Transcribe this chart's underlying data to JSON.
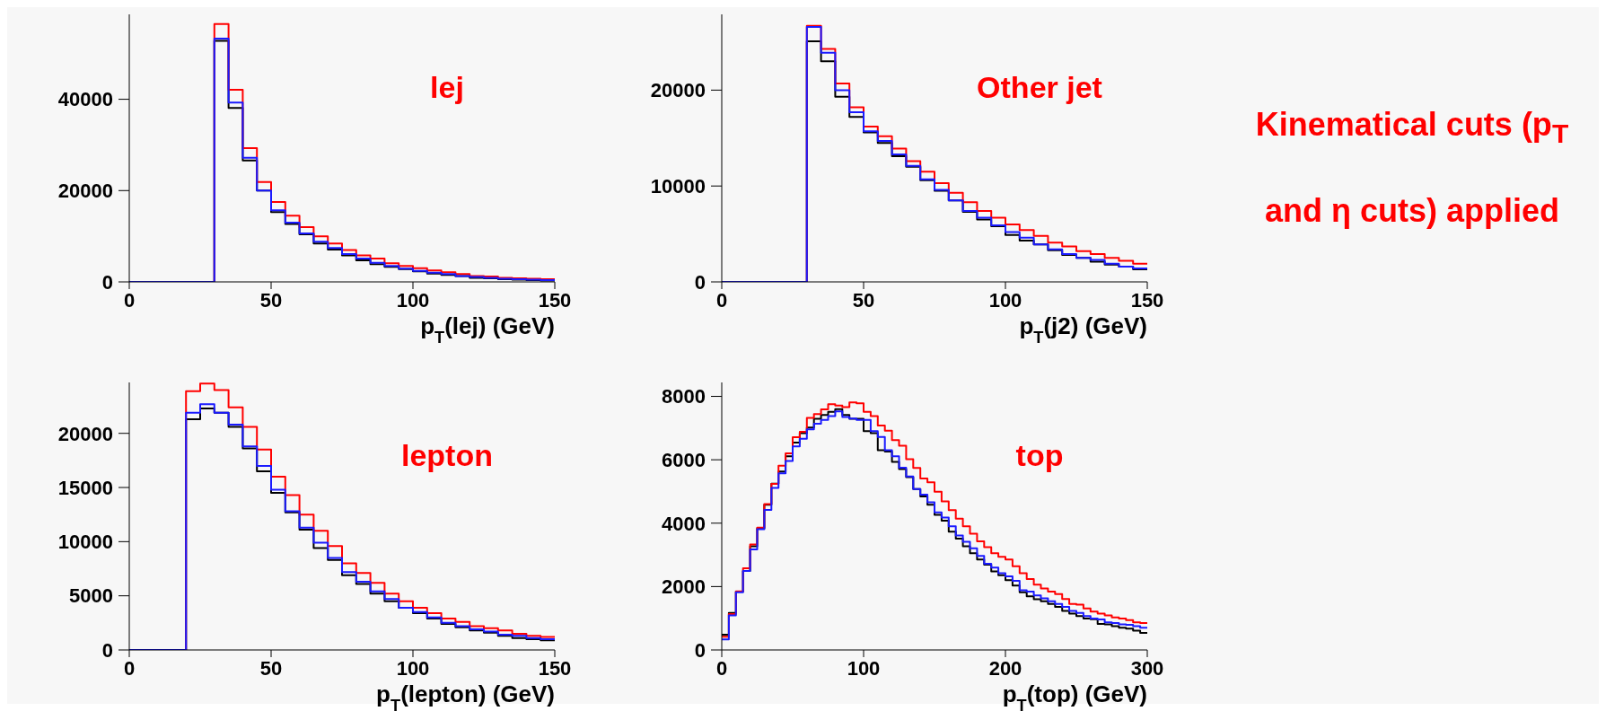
{
  "chart_data": [
    {
      "type": "histogram",
      "xlabel": "p$_{T}$(lej) (GeV)",
      "annotations": [
        "lej"
      ],
      "xlim": [
        0,
        150
      ],
      "xticks": [
        0,
        50,
        100,
        150
      ],
      "ylim": [
        0,
        58600
      ],
      "yticks": [
        0,
        20000,
        40000
      ],
      "bins": [
        0,
        5,
        10,
        15,
        20,
        25,
        30,
        35,
        40,
        45,
        50,
        55,
        60,
        65,
        70,
        75,
        80,
        85,
        90,
        95,
        100,
        105,
        110,
        115,
        120,
        125,
        130,
        135,
        140,
        145,
        150
      ],
      "series": [
        {
          "color": "#000000",
          "values": [
            0,
            0,
            0,
            0,
            0,
            0,
            52800,
            38100,
            26600,
            20000,
            15300,
            12700,
            10400,
            8400,
            7100,
            5800,
            4700,
            3900,
            3300,
            2800,
            2300,
            1800,
            1500,
            1300,
            900,
            800,
            600,
            500,
            400,
            300
          ]
        },
        {
          "color": "#ff0000",
          "values": [
            0,
            0,
            0,
            0,
            0,
            0,
            56500,
            42100,
            29300,
            21900,
            17500,
            14500,
            12000,
            10000,
            8400,
            7000,
            5800,
            5100,
            4100,
            3500,
            3000,
            2500,
            2100,
            1700,
            1300,
            1200,
            900,
            800,
            700,
            600
          ]
        },
        {
          "color": "#1a1aff",
          "values": [
            0,
            0,
            0,
            0,
            0,
            0,
            53300,
            39300,
            27200,
            20000,
            15700,
            13000,
            10600,
            8800,
            7400,
            6100,
            5100,
            4200,
            3500,
            2900,
            2400,
            2000,
            1700,
            1300,
            1100,
            900,
            700,
            600,
            500,
            400
          ]
        }
      ]
    },
    {
      "type": "histogram",
      "xlabel": "p$_{T}$(j2) (GeV)",
      "annotations": [
        "Other jet"
      ],
      "xlim": [
        0,
        150
      ],
      "xticks": [
        0,
        50,
        100,
        150
      ],
      "ylim": [
        0,
        27900
      ],
      "yticks": [
        0,
        10000,
        20000
      ],
      "bins": [
        0,
        5,
        10,
        15,
        20,
        25,
        30,
        35,
        40,
        45,
        50,
        55,
        60,
        65,
        70,
        75,
        80,
        85,
        90,
        95,
        100,
        105,
        110,
        115,
        120,
        125,
        130,
        135,
        140,
        145,
        150
      ],
      "series": [
        {
          "color": "#000000",
          "values": [
            0,
            0,
            0,
            0,
            0,
            0,
            25100,
            23000,
            19300,
            17200,
            15600,
            14500,
            13100,
            12000,
            10600,
            9500,
            8500,
            7300,
            6500,
            5800,
            4900,
            4300,
            3900,
            3300,
            2800,
            2500,
            2100,
            1800,
            1600,
            1300
          ]
        },
        {
          "color": "#ff0000",
          "values": [
            0,
            0,
            0,
            0,
            0,
            0,
            26700,
            24300,
            20700,
            18200,
            16200,
            15200,
            13900,
            12600,
            11500,
            10300,
            9300,
            8300,
            7400,
            6700,
            6000,
            5400,
            4800,
            4100,
            3700,
            3200,
            2900,
            2500,
            2200,
            1900
          ]
        },
        {
          "color": "#1a1aff",
          "values": [
            0,
            0,
            0,
            0,
            0,
            0,
            26600,
            23900,
            20000,
            17700,
            15700,
            14700,
            13300,
            12100,
            10700,
            9600,
            8500,
            7400,
            6700,
            5900,
            5200,
            4600,
            3900,
            3400,
            2900,
            2500,
            2300,
            1900,
            1600,
            1400
          ]
        }
      ]
    },
    {
      "type": "histogram",
      "xlabel": "p$_{T}$(lepton) (GeV)",
      "annotations": [
        "lepton"
      ],
      "xlim": [
        0,
        150
      ],
      "xticks": [
        0,
        50,
        100,
        150
      ],
      "ylim": [
        0,
        24700
      ],
      "yticks": [
        0,
        5000,
        10000,
        15000,
        20000
      ],
      "bins": [
        0,
        5,
        10,
        15,
        20,
        25,
        30,
        35,
        40,
        45,
        50,
        55,
        60,
        65,
        70,
        75,
        80,
        85,
        90,
        95,
        100,
        105,
        110,
        115,
        120,
        125,
        130,
        135,
        140,
        145,
        150
      ],
      "series": [
        {
          "color": "#000000",
          "values": [
            0,
            0,
            0,
            0,
            21300,
            22300,
            21900,
            20600,
            18600,
            16500,
            14500,
            12700,
            11100,
            9400,
            8300,
            6900,
            6100,
            5200,
            4500,
            3900,
            3400,
            2900,
            2400,
            2100,
            1800,
            1600,
            1300,
            1100,
            1000,
            900
          ]
        },
        {
          "color": "#ff0000",
          "values": [
            0,
            0,
            0,
            0,
            23900,
            24600,
            24000,
            22400,
            20600,
            18500,
            16000,
            14300,
            12500,
            11000,
            9600,
            8000,
            7100,
            6200,
            5200,
            4500,
            3900,
            3400,
            2900,
            2600,
            2200,
            2000,
            1800,
            1500,
            1300,
            1200
          ]
        },
        {
          "color": "#1a1aff",
          "values": [
            0,
            0,
            0,
            0,
            21900,
            22700,
            21900,
            20800,
            18800,
            17000,
            14800,
            12800,
            11300,
            9900,
            8500,
            7200,
            6300,
            5400,
            4700,
            3900,
            3500,
            3000,
            2500,
            2200,
            1900,
            1700,
            1400,
            1300,
            1100,
            1000
          ]
        }
      ]
    },
    {
      "type": "histogram",
      "xlabel": "p$_{T}$(top) (GeV)",
      "annotations": [
        "top"
      ],
      "xlim": [
        0,
        300
      ],
      "xticks": [
        0,
        100,
        200,
        300
      ],
      "ylim": [
        0,
        8440
      ],
      "yticks": [
        0,
        2000,
        4000,
        6000,
        8000
      ],
      "bins": [
        0,
        5,
        10,
        15,
        20,
        25,
        30,
        35,
        40,
        45,
        50,
        55,
        60,
        65,
        70,
        75,
        80,
        85,
        90,
        95,
        100,
        105,
        110,
        115,
        120,
        125,
        130,
        135,
        140,
        145,
        150,
        155,
        160,
        165,
        170,
        175,
        180,
        185,
        190,
        195,
        200,
        205,
        210,
        215,
        220,
        225,
        230,
        235,
        240,
        245,
        250,
        255,
        260,
        265,
        270,
        275,
        280,
        285,
        290,
        295,
        300
      ],
      "series": [
        {
          "color": "#000000",
          "values": [
            480,
            1170,
            1840,
            2490,
            3270,
            3840,
            4580,
            5250,
            5630,
            6110,
            6540,
            6840,
            7020,
            7290,
            7410,
            7510,
            7600,
            7410,
            7290,
            7290,
            6900,
            6840,
            6300,
            6260,
            5930,
            5710,
            5450,
            5080,
            4840,
            4580,
            4260,
            4080,
            3730,
            3510,
            3270,
            3050,
            2850,
            2690,
            2480,
            2360,
            2200,
            2030,
            1820,
            1690,
            1600,
            1540,
            1450,
            1360,
            1230,
            1150,
            1070,
            990,
            970,
            820,
            810,
            750,
            700,
            670,
            610,
            540
          ]
        },
        {
          "color": "#ff0000",
          "values": [
            420,
            1130,
            1850,
            2580,
            3330,
            3860,
            4600,
            5240,
            5810,
            6200,
            6710,
            6880,
            7320,
            7440,
            7590,
            7750,
            7710,
            7660,
            7810,
            7780,
            7510,
            7380,
            7080,
            6920,
            6620,
            6440,
            6020,
            5740,
            5410,
            5290,
            4990,
            4690,
            4410,
            4140,
            3900,
            3670,
            3430,
            3240,
            3050,
            2940,
            2850,
            2640,
            2420,
            2240,
            2060,
            1940,
            1840,
            1760,
            1610,
            1450,
            1430,
            1310,
            1210,
            1150,
            1090,
            1030,
            990,
            940,
            870,
            850
          ]
        },
        {
          "color": "#1a1aff",
          "values": [
            330,
            1090,
            1820,
            2490,
            3170,
            3810,
            4420,
            5110,
            5570,
            5960,
            6420,
            6660,
            6960,
            7140,
            7260,
            7380,
            7530,
            7350,
            7300,
            7260,
            7260,
            6900,
            6720,
            6300,
            6110,
            5750,
            5470,
            5080,
            4900,
            4660,
            4340,
            4180,
            3900,
            3610,
            3410,
            3210,
            2970,
            2720,
            2600,
            2420,
            2320,
            2180,
            1880,
            1840,
            1720,
            1630,
            1540,
            1450,
            1360,
            1230,
            1170,
            1070,
            990,
            960,
            870,
            850,
            810,
            790,
            750,
            700
          ]
        }
      ]
    },
    {
      "type": "other",
      "annotations": [
        "Kinematical cuts (p$_{T}$ and η cuts) applied"
      ]
    }
  ]
}
